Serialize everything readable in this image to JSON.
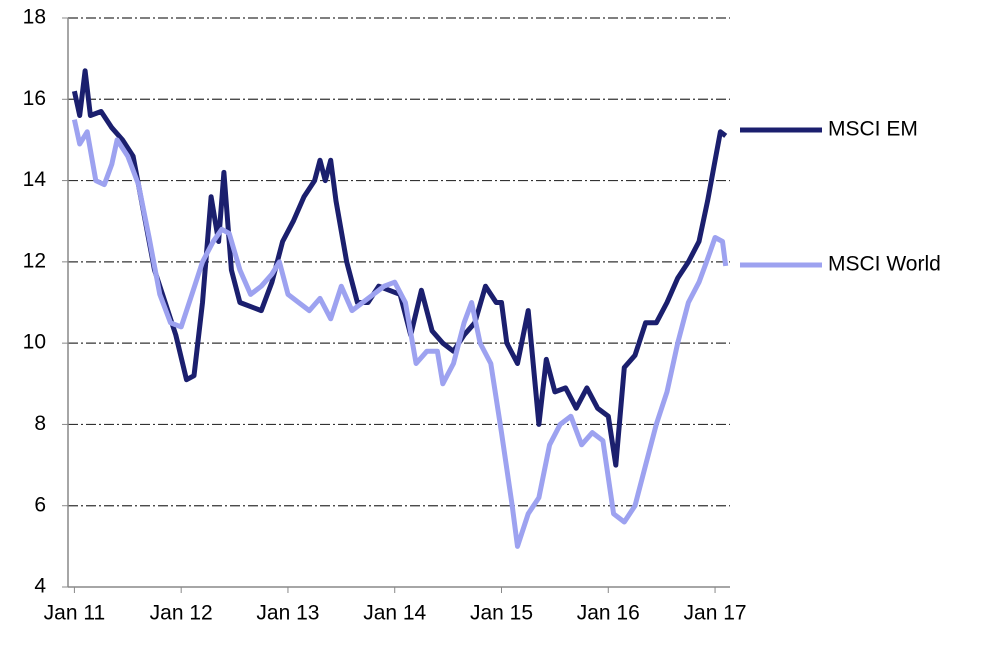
{
  "chart_data": {
    "type": "line",
    "xlim": [
      2010.94,
      2017.14
    ],
    "xticks": [
      {
        "value": 2011,
        "label": "Jan 11"
      },
      {
        "value": 2012,
        "label": "Jan 12"
      },
      {
        "value": 2013,
        "label": "Jan 13"
      },
      {
        "value": 2014,
        "label": "Jan 14"
      },
      {
        "value": 2015,
        "label": "Jan 15"
      },
      {
        "value": 2016,
        "label": "Jan 16"
      },
      {
        "value": 2017,
        "label": "Jan 17"
      }
    ],
    "ylim": [
      4,
      18
    ],
    "yticks": [
      4,
      6,
      8,
      10,
      12,
      14,
      16,
      18
    ],
    "grid": true,
    "series": [
      {
        "name": "MSCI EM",
        "color": "#1b1f6e",
        "x": [
          2011.0,
          2011.05,
          2011.1,
          2011.15,
          2011.25,
          2011.35,
          2011.45,
          2011.55,
          2011.65,
          2011.75,
          2011.85,
          2011.95,
          2012.05,
          2012.12,
          2012.2,
          2012.28,
          2012.35,
          2012.4,
          2012.47,
          2012.55,
          2012.65,
          2012.75,
          2012.85,
          2012.95,
          2013.05,
          2013.15,
          2013.25,
          2013.3,
          2013.35,
          2013.4,
          2013.45,
          2013.55,
          2013.65,
          2013.75,
          2013.85,
          2013.95,
          2014.05,
          2014.15,
          2014.25,
          2014.35,
          2014.45,
          2014.55,
          2014.65,
          2014.75,
          2014.85,
          2014.95,
          2015.0,
          2015.05,
          2015.15,
          2015.25,
          2015.35,
          2015.42,
          2015.5,
          2015.6,
          2015.7,
          2015.8,
          2015.9,
          2016.0,
          2016.07,
          2016.15,
          2016.25,
          2016.35,
          2016.45,
          2016.55,
          2016.65,
          2016.75,
          2016.85,
          2016.93,
          2017.0,
          2017.05,
          2017.1
        ],
        "values": [
          16.2,
          15.6,
          16.7,
          15.6,
          15.7,
          15.3,
          15.0,
          14.6,
          13.2,
          11.8,
          11.0,
          10.2,
          9.1,
          9.2,
          11.0,
          13.6,
          12.5,
          14.2,
          11.8,
          11.0,
          10.9,
          10.8,
          11.5,
          12.5,
          13.0,
          13.6,
          14.0,
          14.5,
          14.0,
          14.5,
          13.5,
          12.0,
          11.0,
          11.0,
          11.4,
          11.3,
          11.2,
          10.2,
          11.3,
          10.3,
          10.0,
          9.8,
          10.2,
          10.5,
          11.4,
          11.0,
          11.0,
          10.0,
          9.5,
          10.8,
          8.0,
          9.6,
          8.8,
          8.9,
          8.4,
          8.9,
          8.4,
          8.2,
          7.0,
          9.4,
          9.7,
          10.5,
          10.5,
          11.0,
          11.6,
          12.0,
          12.5,
          13.5,
          14.5,
          15.2,
          15.1
        ]
      },
      {
        "name": "MSCI World",
        "color": "#9da2f0",
        "x": [
          2011.0,
          2011.05,
          2011.12,
          2011.2,
          2011.28,
          2011.35,
          2011.4,
          2011.5,
          2011.6,
          2011.7,
          2011.8,
          2011.9,
          2012.0,
          2012.1,
          2012.2,
          2012.3,
          2012.38,
          2012.45,
          2012.55,
          2012.65,
          2012.75,
          2012.85,
          2012.92,
          2013.0,
          2013.1,
          2013.2,
          2013.3,
          2013.4,
          2013.5,
          2013.6,
          2013.7,
          2013.8,
          2013.9,
          2014.0,
          2014.1,
          2014.2,
          2014.3,
          2014.4,
          2014.45,
          2014.55,
          2014.65,
          2014.72,
          2014.8,
          2014.9,
          2015.0,
          2015.1,
          2015.15,
          2015.25,
          2015.35,
          2015.45,
          2015.55,
          2015.65,
          2015.75,
          2015.85,
          2015.95,
          2016.05,
          2016.15,
          2016.25,
          2016.35,
          2016.45,
          2016.55,
          2016.65,
          2016.75,
          2016.85,
          2016.92,
          2017.0,
          2017.07,
          2017.1
        ],
        "values": [
          15.5,
          14.9,
          15.2,
          14.0,
          13.9,
          14.4,
          15.0,
          14.6,
          13.9,
          12.6,
          11.2,
          10.5,
          10.4,
          11.2,
          12.0,
          12.5,
          12.8,
          12.7,
          11.8,
          11.2,
          11.4,
          11.7,
          12.0,
          11.2,
          11.0,
          10.8,
          11.1,
          10.6,
          11.4,
          10.8,
          11.0,
          11.2,
          11.4,
          11.5,
          11.0,
          9.5,
          9.8,
          9.8,
          9.0,
          9.5,
          10.5,
          11.0,
          10.0,
          9.5,
          7.8,
          6.0,
          5.0,
          5.8,
          6.2,
          7.5,
          8.0,
          8.2,
          7.5,
          7.8,
          7.6,
          5.8,
          5.6,
          6.0,
          7.0,
          8.0,
          8.8,
          10.0,
          11.0,
          11.5,
          12.0,
          12.6,
          12.5,
          11.9
        ]
      }
    ]
  }
}
